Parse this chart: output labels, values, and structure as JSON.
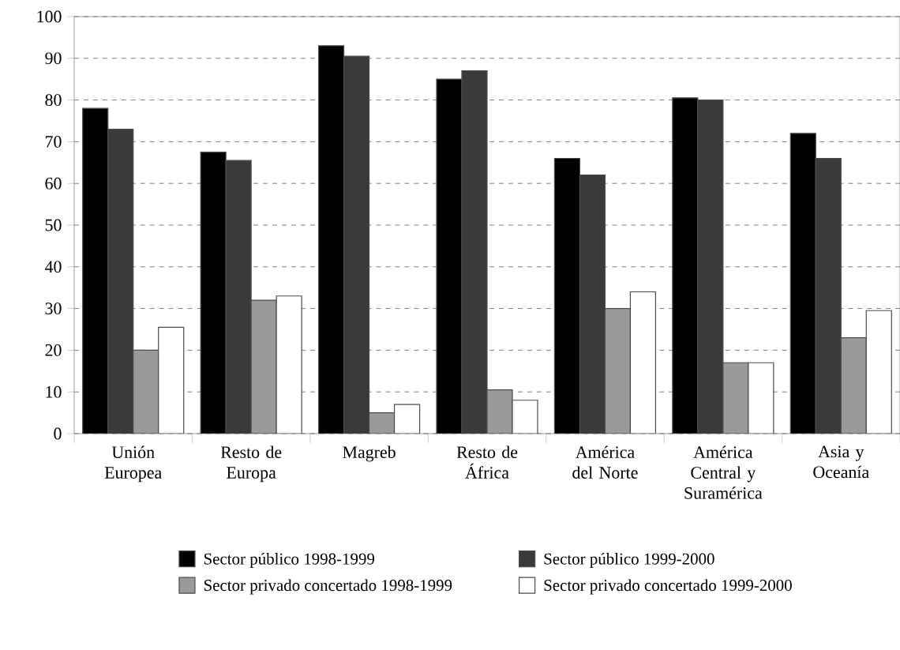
{
  "chart_data": {
    "type": "bar",
    "categories": [
      "Unión Europea",
      "Resto de Europa",
      "Magreb",
      "Resto de África",
      "América del Norte",
      "América Central y Suramérica",
      "Asia y Oceanía"
    ],
    "series": [
      {
        "name": "Sector público 1998-1999",
        "color": "#000000",
        "values": [
          78,
          67.5,
          93,
          85,
          66,
          80.5,
          72
        ]
      },
      {
        "name": "Sector público 1999-2000",
        "color": "#3a3a3a",
        "values": [
          73,
          65.5,
          90.5,
          87,
          62,
          80,
          66
        ]
      },
      {
        "name": "Sector privado concertado 1998-1999",
        "color": "#9a9a9a",
        "values": [
          20,
          32,
          5,
          10.5,
          30,
          17,
          23
        ]
      },
      {
        "name": "Sector privado concertado 1999-2000",
        "color": "#ffffff",
        "values": [
          25.5,
          33,
          7,
          8,
          34,
          17,
          29.5
        ]
      }
    ],
    "ylim": [
      0,
      100
    ],
    "yticks": [
      0,
      10,
      20,
      30,
      40,
      50,
      60,
      70,
      80,
      90,
      100
    ],
    "grid": "y",
    "legend": "bottom"
  }
}
